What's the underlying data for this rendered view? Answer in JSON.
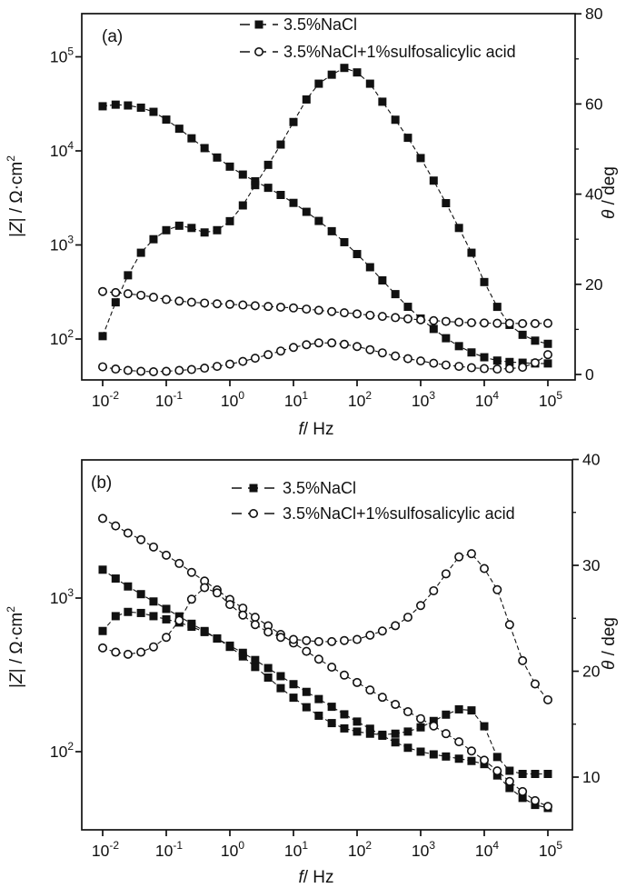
{
  "figure": {
    "background": "#ffffff",
    "ink": "#111111",
    "legend": [
      {
        "label": "3.5%NaCl",
        "marker": "filled-square"
      },
      {
        "label": "3.5%NaCl+1%sulfosalicylic acid",
        "marker": "open-circle"
      }
    ],
    "xlabel_parts": [
      [
        "i",
        "f"
      ],
      [
        "n",
        "/ Hz"
      ]
    ],
    "ylabel_left_parts": [
      [
        "n",
        "|"
      ],
      [
        "i",
        "Z"
      ],
      [
        "n",
        "| / Ω·cm"
      ],
      [
        "sup",
        "2"
      ]
    ],
    "ylabel_right_parts": [
      [
        "i",
        "θ"
      ],
      [
        "n",
        " / deg"
      ]
    ]
  },
  "chart_data": [
    {
      "type": "line",
      "panel_label": "(a)",
      "xlabel": "f / Hz",
      "ylabel_left": "|Z| / Ω·cm²",
      "ylabel_right": "θ / deg",
      "x_scale": "log",
      "x_range": [
        0.01,
        100000
      ],
      "x_tick_exponents": [
        -2,
        -1,
        0,
        1,
        2,
        3,
        4,
        5
      ],
      "y_left_scale": "log",
      "y_left_tick_exponents": [
        2,
        3,
        4,
        5
      ],
      "y_left_range_exponents": [
        1.6,
        5.4
      ],
      "y_right_range": [
        0,
        80
      ],
      "y_right_major_ticks": [
        0,
        20,
        40,
        60,
        80
      ],
      "y_right_minor_ticks": [
        10,
        30,
        50,
        70
      ],
      "grid": false,
      "legend_position": "top-center",
      "frequencies": [
        0.01,
        0.016,
        0.025,
        0.04,
        0.063,
        0.1,
        0.16,
        0.25,
        0.4,
        0.63,
        1,
        1.6,
        2.5,
        4,
        6.3,
        10,
        16,
        25,
        40,
        63,
        100,
        160,
        250,
        400,
        630,
        1000,
        1600,
        2500,
        4000,
        6300,
        10000,
        16000,
        25000,
        40000,
        63000,
        100000
      ],
      "series": [
        {
          "id": "a-z-nacl",
          "name": "3.5%NaCl |Z|",
          "legend": 0,
          "marker": "filled-square",
          "axis": "left",
          "unit": "ohm·cm2",
          "values": [
            29800,
            31000,
            30400,
            28800,
            26000,
            21500,
            17200,
            13600,
            10700,
            8500,
            6800,
            5600,
            4750,
            4050,
            3400,
            2800,
            2250,
            1800,
            1400,
            1070,
            800,
            580,
            420,
            300,
            220,
            165,
            128,
            102,
            84,
            72,
            64,
            59,
            57,
            56,
            55,
            55
          ]
        },
        {
          "id": "a-theta-nacl",
          "name": "3.5%NaCl θ",
          "legend": 0,
          "marker": "filled-square",
          "axis": "right",
          "unit": "deg",
          "values": [
            8.5,
            16,
            22,
            27,
            30,
            32,
            33,
            32.5,
            31.5,
            32,
            34,
            37.5,
            42,
            46.5,
            51,
            56,
            61,
            64.5,
            66.5,
            68,
            67,
            64.5,
            60.5,
            56.5,
            52.5,
            48,
            43,
            38,
            32.5,
            27,
            20.5,
            15,
            11,
            8.8,
            7.5,
            6.8
          ]
        },
        {
          "id": "a-z-acid",
          "name": "3.5%NaCl+1%sulfosalicylic acid |Z|",
          "legend": 1,
          "marker": "open-circle",
          "axis": "left",
          "unit": "ohm·cm2",
          "values": [
            320,
            312,
            303,
            292,
            278,
            263,
            253,
            246,
            241,
            237,
            234,
            230,
            226,
            222,
            218,
            214,
            208,
            202,
            196,
            190,
            185,
            179,
            174,
            169,
            164,
            160,
            157,
            154,
            151,
            149,
            148,
            147,
            147,
            146,
            146,
            147
          ]
        },
        {
          "id": "a-theta-acid",
          "name": "3.5%NaCl+1%sulfosalicylic acid θ",
          "legend": 1,
          "marker": "open-circle",
          "axis": "right",
          "unit": "deg",
          "values": [
            1.7,
            1.2,
            0.9,
            0.7,
            0.6,
            0.7,
            0.9,
            1.1,
            1.4,
            1.8,
            2.3,
            2.9,
            3.6,
            4.4,
            5.2,
            6.0,
            6.6,
            7.0,
            7.0,
            6.7,
            6.2,
            5.5,
            4.8,
            4.1,
            3.5,
            3.0,
            2.5,
            2.1,
            1.8,
            1.5,
            1.3,
            1.2,
            1.3,
            1.6,
            2.6,
            4.4
          ]
        }
      ]
    },
    {
      "type": "line",
      "panel_label": "(b)",
      "xlabel": "f / Hz",
      "ylabel_left": "|Z| / Ω·cm²",
      "ylabel_right": "θ / deg",
      "x_scale": "log",
      "x_range": [
        0.01,
        100000
      ],
      "x_tick_exponents": [
        -2,
        -1,
        0,
        1,
        2,
        3,
        4,
        5
      ],
      "y_left_scale": "log",
      "y_left_tick_exponents": [
        2,
        3
      ],
      "y_left_range_exponents": [
        1.5,
        3.9
      ],
      "y_right_range": [
        5,
        40
      ],
      "y_right_major_ticks": [
        10,
        20,
        30,
        40
      ],
      "y_right_minor_ticks": [
        15,
        25,
        35
      ],
      "grid": false,
      "legend_position": "top-center",
      "frequencies": [
        0.01,
        0.016,
        0.025,
        0.04,
        0.063,
        0.1,
        0.16,
        0.25,
        0.4,
        0.63,
        1,
        1.6,
        2.5,
        4,
        6.3,
        10,
        16,
        25,
        40,
        63,
        100,
        160,
        250,
        400,
        630,
        1000,
        1600,
        2500,
        4000,
        6300,
        10000,
        16000,
        25000,
        40000,
        63000,
        100000
      ],
      "series": [
        {
          "id": "b-z-nacl",
          "name": "3.5%NaCl |Z|",
          "legend": 0,
          "marker": "filled-square",
          "axis": "left",
          "unit": "ohm·cm2",
          "values": [
            1530,
            1340,
            1190,
            1060,
            950,
            850,
            760,
            680,
            610,
            545,
            490,
            440,
            395,
            350,
            310,
            275,
            245,
            220,
            196,
            175,
            157,
            141,
            127,
            115,
            106,
            100,
            96,
            93,
            90,
            87,
            83,
            70,
            58,
            50,
            45,
            43
          ]
        },
        {
          "id": "b-theta-nacl",
          "name": "3.5%NaCl θ",
          "legend": 0,
          "marker": "filled-square",
          "axis": "right",
          "unit": "deg",
          "values": [
            23.8,
            25.2,
            25.6,
            25.5,
            25.2,
            24.9,
            24.6,
            24.2,
            23.7,
            23.1,
            22.3,
            21.4,
            20.4,
            19.4,
            18.4,
            17.5,
            16.6,
            15.8,
            15.1,
            14.6,
            14.3,
            14.1,
            14.0,
            14.1,
            14.3,
            14.7,
            15.3,
            15.9,
            16.4,
            16.3,
            14.8,
            11.9,
            10.6,
            10.3,
            10.3,
            10.3
          ]
        },
        {
          "id": "b-z-acid",
          "name": "3.5%NaCl+1%sulfosalicylic acid |Z|",
          "legend": 1,
          "marker": "open-circle",
          "axis": "left",
          "unit": "ohm·cm2",
          "values": [
            3300,
            2950,
            2650,
            2400,
            2150,
            1900,
            1680,
            1470,
            1290,
            1130,
            980,
            860,
            750,
            660,
            580,
            510,
            450,
            400,
            355,
            315,
            282,
            252,
            226,
            203,
            182,
            164,
            147,
            131,
            116,
            101,
            88,
            75,
            64,
            55,
            48,
            44
          ]
        },
        {
          "id": "b-theta-acid",
          "name": "3.5%NaCl+1%sulfosalicylic acid θ",
          "legend": 1,
          "marker": "open-circle",
          "axis": "right",
          "unit": "deg",
          "values": [
            22.2,
            21.8,
            21.6,
            21.8,
            22.3,
            23.2,
            24.8,
            26.8,
            27.9,
            27.4,
            26.3,
            25.3,
            24.4,
            23.7,
            23.2,
            23.0,
            22.9,
            22.8,
            22.8,
            22.9,
            23.0,
            23.4,
            23.8,
            24.3,
            25.1,
            26.2,
            27.6,
            29.2,
            30.8,
            31.1,
            29.7,
            27.7,
            24.4,
            21.0,
            18.8,
            17.3
          ]
        }
      ]
    }
  ]
}
